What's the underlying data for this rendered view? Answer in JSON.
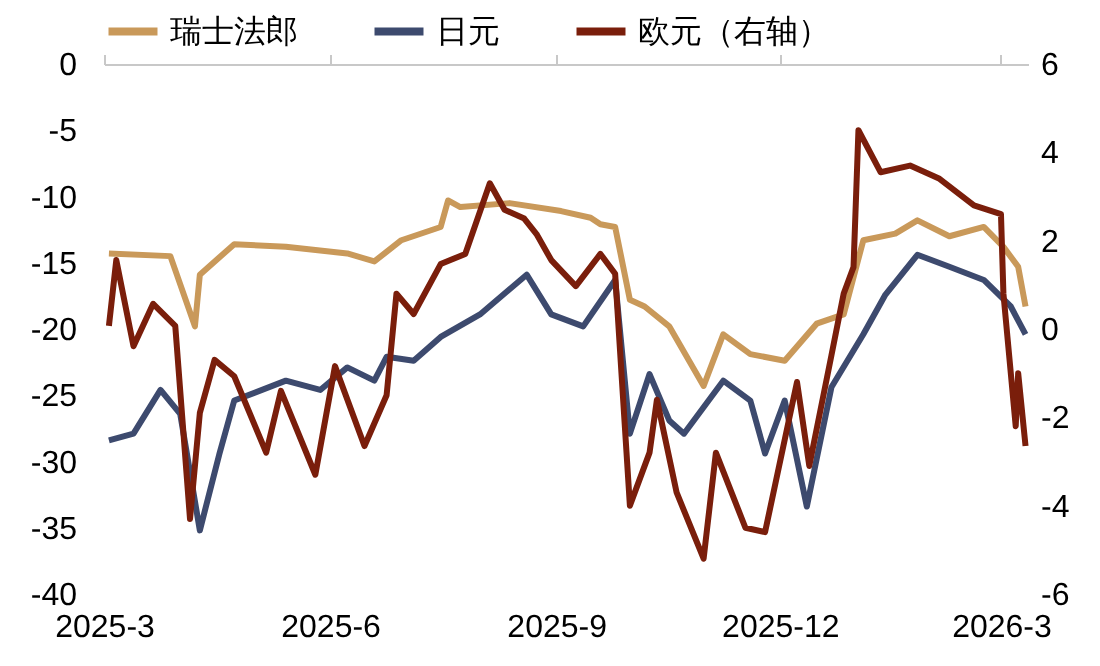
{
  "chart_data": {
    "type": "line",
    "legend": "top",
    "grid": false,
    "line_style": "solid",
    "marker": "none",
    "xlim": [
      "2025-03-01",
      "2026-03-12"
    ],
    "xticks": [
      {
        "value": "2025-03-01",
        "label": "2025-3"
      },
      {
        "value": "2025-06-01",
        "label": "2025-6"
      },
      {
        "value": "2025-09-01",
        "label": "2025-9"
      },
      {
        "value": "2025-12-01",
        "label": "2025-12"
      },
      {
        "value": "2026-03-01",
        "label": "2026-3"
      }
    ],
    "ylim": [
      -40,
      0
    ],
    "yticks": [
      -40,
      -35,
      -30,
      -25,
      -20,
      -15,
      -10,
      -5,
      0
    ],
    "y2lim": [
      -6,
      6
    ],
    "y2ticks": [
      -6,
      -4,
      -2,
      0,
      2,
      4,
      6
    ],
    "series": [
      {
        "name": "瑞士法郎",
        "color": "#c9995a",
        "x": [
          "2025-03-03",
          "2025-03-28",
          "2025-04-07",
          "2025-04-09",
          "2025-04-23",
          "2025-05-14",
          "2025-06-08",
          "2025-06-19",
          "2025-06-30",
          "2025-07-16",
          "2025-07-19",
          "2025-07-24",
          "2025-08-13",
          "2025-09-03",
          "2025-09-15",
          "2025-09-19",
          "2025-09-25",
          "2025-10-01",
          "2025-10-07",
          "2025-10-17",
          "2025-10-31",
          "2025-11-08",
          "2025-11-19",
          "2025-12-03",
          "2025-12-16",
          "2025-12-27",
          "2026-01-04",
          "2026-01-17",
          "2026-01-26",
          "2026-02-08",
          "2026-02-22",
          "2026-03-02",
          "2026-03-08",
          "2026-03-11"
        ],
        "values": [
          -14.3,
          -14.5,
          -19.8,
          -15.9,
          -13.6,
          -13.8,
          -14.3,
          -14.9,
          -13.3,
          -12.3,
          -10.3,
          -10.8,
          -10.5,
          -11.1,
          -11.6,
          -12.1,
          -12.3,
          -17.8,
          -18.3,
          -19.8,
          -24.3,
          -20.4,
          -21.9,
          -22.4,
          -19.6,
          -18.9,
          -13.3,
          -12.8,
          -11.8,
          -13,
          -12.3,
          -13.8,
          -15.3,
          -18.3
        ]
      },
      {
        "name": "日元",
        "color": "#3d4a6e",
        "x": [
          "2025-03-03",
          "2025-03-13",
          "2025-03-24",
          "2025-04-01",
          "2025-04-09",
          "2025-04-17",
          "2025-04-23",
          "2025-05-14",
          "2025-05-28",
          "2025-06-08",
          "2025-06-19",
          "2025-06-24",
          "2025-07-05",
          "2025-07-16",
          "2025-08-01",
          "2025-08-20",
          "2025-08-30",
          "2025-09-12",
          "2025-09-25",
          "2025-10-01",
          "2025-10-09",
          "2025-10-17",
          "2025-10-23",
          "2025-11-08",
          "2025-11-19",
          "2025-11-25",
          "2025-12-03",
          "2025-12-12",
          "2025-12-22",
          "2026-01-04",
          "2026-01-13",
          "2026-01-26",
          "2026-02-08",
          "2026-02-22",
          "2026-03-05",
          "2026-03-11"
        ],
        "values": [
          -28.4,
          -27.9,
          -24.6,
          -26.4,
          -35.2,
          -29.4,
          -25.4,
          -23.9,
          -24.6,
          -22.9,
          -23.9,
          -22.1,
          -22.4,
          -20.6,
          -18.9,
          -15.9,
          -18.9,
          -19.8,
          -16.3,
          -27.9,
          -23.4,
          -26.9,
          -27.9,
          -23.9,
          -25.4,
          -29.4,
          -25.4,
          -33.4,
          -24.4,
          -20.4,
          -17.4,
          -14.4,
          -15.3,
          -16.3,
          -18.3,
          -20.4
        ]
      },
      {
        "name": "欧元（右轴）",
        "color": "#7a1e0b",
        "axis": "y2",
        "x": [
          "2025-03-03",
          "2025-03-06",
          "2025-03-13",
          "2025-03-21",
          "2025-03-30",
          "2025-04-05",
          "2025-04-09",
          "2025-04-15",
          "2025-04-23",
          "2025-05-06",
          "2025-05-12",
          "2025-05-26",
          "2025-06-03",
          "2025-06-15",
          "2025-06-24",
          "2025-06-28",
          "2025-07-05",
          "2025-07-16",
          "2025-07-26",
          "2025-08-05",
          "2025-08-11",
          "2025-08-19",
          "2025-08-24",
          "2025-08-30",
          "2025-09-09",
          "2025-09-19",
          "2025-09-25",
          "2025-10-01",
          "2025-10-09",
          "2025-10-12",
          "2025-10-20",
          "2025-10-31",
          "2025-11-05",
          "2025-11-17",
          "2025-11-25",
          "2025-12-08",
          "2025-12-13",
          "2025-12-22",
          "2025-12-27",
          "2025-12-31",
          "2026-01-02",
          "2026-01-11",
          "2026-01-23",
          "2026-02-04",
          "2026-02-18",
          "2026-03-01",
          "2026-03-02",
          "2026-03-07",
          "2026-03-08",
          "2026-03-11"
        ],
        "values": [
          0.07,
          1.56,
          -0.39,
          0.57,
          0.07,
          -4.3,
          -1.9,
          -0.7,
          -1.07,
          -2.8,
          -1.4,
          -3.3,
          -0.84,
          -2.65,
          -1.5,
          0.8,
          0.34,
          1.47,
          1.7,
          3.3,
          2.7,
          2.5,
          2.15,
          1.56,
          0.97,
          1.7,
          1.25,
          -4.0,
          -2.8,
          -1.6,
          -3.7,
          -5.2,
          -2.8,
          -4.5,
          -4.6,
          -1.2,
          -3.1,
          -0.6,
          0.8,
          1.4,
          4.5,
          3.55,
          3.7,
          3.4,
          2.8,
          2.6,
          0.8,
          -2.2,
          -1.0,
          -2.65
        ]
      }
    ]
  }
}
